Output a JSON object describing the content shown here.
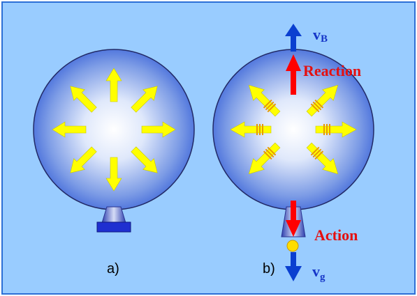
{
  "panel_a": {
    "label": "a)"
  },
  "panel_b": {
    "label": "b)",
    "reaction_label": "Reaction",
    "action_label": "Action",
    "velocity_balloon": {
      "base": "v",
      "subscript": "B"
    },
    "velocity_gas": {
      "base": "v",
      "subscript": "g"
    }
  },
  "colors": {
    "background": "#99ccff",
    "frame": "#2c6fd6",
    "balloon_edge": "#222a66",
    "balloon_center": "#ffffff",
    "balloon_outer": "#3a63d8",
    "pressure_arrow": "#ffff00",
    "force_arrow": "#ff0000",
    "velocity_arrow": "#0a3fd0",
    "velocity_text": "#1636c8",
    "label_red": "#e41010",
    "gas_droplet": "#ffdd00",
    "nozzle": "#5a6ad0"
  },
  "icons": {
    "pressure": "arrow-icon",
    "force": "arrow-icon",
    "velocity": "arrow-icon",
    "gas": "circle-icon",
    "nozzle": "trapezoid-icon",
    "stand": "rectangle-icon"
  }
}
